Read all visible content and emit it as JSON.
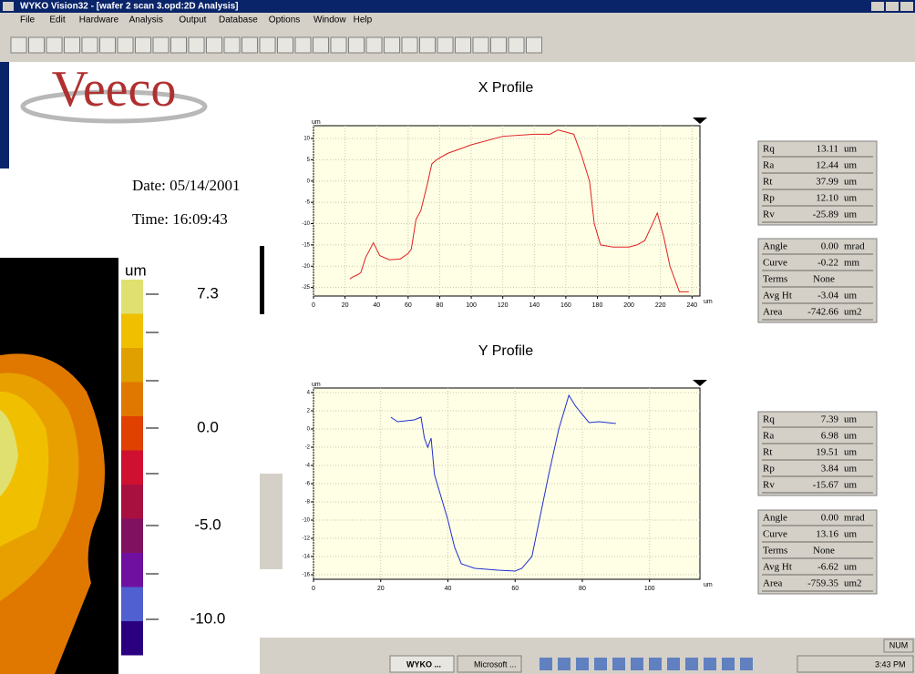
{
  "window": {
    "title": "WYKO Vision32 - [wafer 2 scan 3.opd:2D Analysis]",
    "menus": [
      "File",
      "Edit",
      "Hardware",
      "Analysis",
      "Output",
      "Database",
      "Options",
      "Window",
      "Help"
    ]
  },
  "logo": "Veeco",
  "date": "Date:  05/14/2001",
  "time": "Time:  16:09:43",
  "colorbar": {
    "unit": "um",
    "labels": [
      "7.3",
      "0.0",
      "-5.0",
      "-10.0"
    ]
  },
  "chart_data": [
    {
      "type": "line",
      "title": "X Profile",
      "x_label": "um",
      "y_label": "um",
      "x": [
        23,
        25,
        28,
        30,
        33,
        38,
        42,
        48,
        55,
        60,
        62,
        65,
        68,
        72,
        75,
        78,
        85,
        100,
        120,
        140,
        150,
        155,
        160,
        165,
        170,
        175,
        178,
        182,
        190,
        200,
        205,
        210,
        215,
        218,
        222,
        226,
        232,
        238
      ],
      "series": [
        {
          "color": "#e02020",
          "values": [
            -23,
            -22.5,
            -22,
            -21.5,
            -18,
            -14.5,
            -17.5,
            -18.5,
            -18.3,
            -17,
            -16,
            -9,
            -7,
            -1,
            4,
            5,
            6.5,
            8.5,
            10.5,
            11,
            11,
            12,
            11.5,
            11,
            6,
            0,
            -10,
            -15,
            -15.5,
            -15.5,
            -15,
            -14,
            -10,
            -7.5,
            -13,
            -20,
            -26,
            -26
          ]
        }
      ],
      "xlim": [
        0,
        245
      ],
      "ylim": [
        -27,
        13
      ],
      "xticks": [
        0,
        20,
        40,
        60,
        80,
        100,
        120,
        140,
        160,
        180,
        200,
        220,
        240
      ],
      "yticks": [
        10,
        5,
        0,
        -5,
        -10,
        -15,
        -20,
        -25
      ],
      "grid": true
    },
    {
      "type": "line",
      "title": "Y Profile",
      "x_label": "um",
      "y_label": "um",
      "x": [
        23,
        25,
        30,
        32,
        33,
        34,
        35,
        36,
        40,
        42,
        44,
        48,
        55,
        60,
        62,
        65,
        70,
        73,
        76,
        78,
        82,
        85,
        90
      ],
      "series": [
        {
          "color": "#2030d0",
          "values": [
            1.3,
            0.8,
            1,
            1.3,
            -1,
            -2,
            -1,
            -5,
            -10,
            -13,
            -14.8,
            -15.3,
            -15.5,
            -15.6,
            -15.3,
            -14,
            -5,
            0,
            3.7,
            2.5,
            0.7,
            0.8,
            0.6
          ]
        }
      ],
      "xlim": [
        0,
        115
      ],
      "ylim": [
        -16.5,
        4.5
      ],
      "xticks": [
        0,
        20,
        40,
        60,
        80,
        100
      ],
      "yticks": [
        4,
        2,
        0,
        -2,
        -4,
        -6,
        -8,
        -10,
        -12,
        -14,
        -16
      ],
      "grid": true
    }
  ],
  "stats": [
    {
      "rows": [
        [
          "Rq",
          "13.11",
          "um"
        ],
        [
          "Ra",
          "12.44",
          "um"
        ],
        [
          "Rt",
          "37.99",
          "um"
        ],
        [
          "Rp",
          "12.10",
          "um"
        ],
        [
          "Rv",
          "-25.89",
          "um"
        ]
      ]
    },
    {
      "rows": [
        [
          "Angle",
          "0.00",
          "mrad"
        ],
        [
          "Curve",
          "-0.22",
          "mm"
        ],
        [
          "Terms",
          "None"
        ],
        [
          "Avg Ht",
          "-3.04",
          "um"
        ],
        [
          "Area",
          "-742.66",
          "um2"
        ]
      ]
    },
    {
      "rows": [
        [
          "Rq",
          "7.39",
          "um"
        ],
        [
          "Ra",
          "6.98",
          "um"
        ],
        [
          "Rt",
          "19.51",
          "um"
        ],
        [
          "Rp",
          "3.84",
          "um"
        ],
        [
          "Rv",
          "-15.67",
          "um"
        ]
      ]
    },
    {
      "rows": [
        [
          "Angle",
          "0.00",
          "mrad"
        ],
        [
          "Curve",
          "13.16",
          "um"
        ],
        [
          "Terms",
          "None"
        ],
        [
          "Avg Ht",
          "-6.62",
          "um"
        ],
        [
          "Area",
          "-759.35",
          "um2"
        ]
      ]
    }
  ],
  "taskbar": {
    "items": [
      "WYKO ...",
      "Microsoft ..."
    ],
    "clock": "3:43 PM",
    "status": "NUM"
  }
}
